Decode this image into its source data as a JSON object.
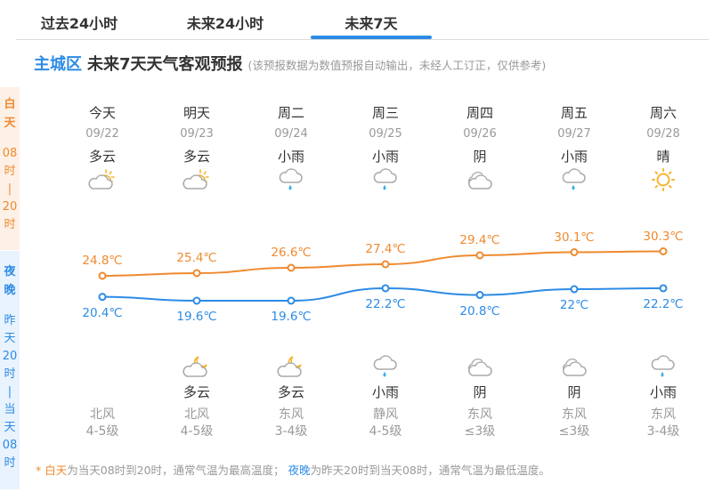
{
  "tabs": [
    {
      "label": "过去24小时",
      "active": false
    },
    {
      "label": "未来24小时",
      "active": false
    },
    {
      "label": "未来7天",
      "active": true
    }
  ],
  "header": {
    "region": "主城区",
    "title": "未来7天天气客观预报",
    "note": "(该预报数据为数值预报自动输出，未经人工订正，仅供参考)"
  },
  "side": {
    "day": {
      "label": "白天",
      "range": [
        "08",
        "时",
        "|",
        "20",
        "时"
      ]
    },
    "night": {
      "label": "夜晚",
      "range": [
        "昨",
        "天",
        "20",
        "时",
        "|",
        "当",
        "天",
        "08",
        "时"
      ]
    }
  },
  "days": [
    {
      "name": "今天",
      "date": "09/22",
      "day_weather": "多云",
      "day_icon": "partly-cloudy-day-icon",
      "night_weather": "",
      "night_icon": "",
      "wind_dir": "北风",
      "wind_level": "4-5级",
      "high": "24.8℃",
      "low": "20.4℃"
    },
    {
      "name": "明天",
      "date": "09/23",
      "day_weather": "多云",
      "day_icon": "partly-cloudy-day-icon",
      "night_weather": "多云",
      "night_icon": "partly-cloudy-night-icon",
      "wind_dir": "北风",
      "wind_level": "4-5级",
      "high": "25.4℃",
      "low": "19.6℃"
    },
    {
      "name": "周二",
      "date": "09/24",
      "day_weather": "小雨",
      "day_icon": "light-rain-icon",
      "night_weather": "多云",
      "night_icon": "partly-cloudy-night-icon",
      "wind_dir": "东风",
      "wind_level": "3-4级",
      "high": "26.6℃",
      "low": "19.6℃"
    },
    {
      "name": "周三",
      "date": "09/25",
      "day_weather": "小雨",
      "day_icon": "light-rain-icon",
      "night_weather": "小雨",
      "night_icon": "light-rain-icon",
      "wind_dir": "静风",
      "wind_level": "4-5级",
      "high": "27.4℃",
      "low": "22.2℃"
    },
    {
      "name": "周四",
      "date": "09/26",
      "day_weather": "阴",
      "day_icon": "overcast-icon",
      "night_weather": "阴",
      "night_icon": "overcast-icon",
      "wind_dir": "东风",
      "wind_level": "≤3级",
      "high": "29.4℃",
      "low": "20.8℃"
    },
    {
      "name": "周五",
      "date": "09/27",
      "day_weather": "小雨",
      "day_icon": "light-rain-icon",
      "night_weather": "阴",
      "night_icon": "overcast-icon",
      "wind_dir": "东风",
      "wind_level": "≤3级",
      "high": "30.1℃",
      "low": "22℃"
    },
    {
      "name": "周六",
      "date": "09/28",
      "day_weather": "晴",
      "day_icon": "sunny-icon",
      "night_weather": "小雨",
      "night_icon": "light-rain-icon",
      "wind_dir": "东风",
      "wind_level": "3-4级",
      "high": "30.3℃",
      "low": "22.2℃"
    }
  ],
  "chart_data": {
    "type": "line",
    "categories": [
      "09/22",
      "09/23",
      "09/24",
      "09/25",
      "09/26",
      "09/27",
      "09/28"
    ],
    "series": [
      {
        "name": "白天最高温度",
        "color": "#ef8a2f",
        "values": [
          24.8,
          25.4,
          26.6,
          27.4,
          29.4,
          30.1,
          30.3
        ]
      },
      {
        "name": "夜晚最低温度",
        "color": "#2d8be6",
        "values": [
          20.4,
          19.6,
          19.6,
          22.2,
          20.8,
          22,
          22.2
        ]
      }
    ],
    "unit": "℃",
    "grid": false
  },
  "footer": {
    "star": "* ",
    "day_word": "白天",
    "day_text": "为当天08时到20时，通常气温为最高温度；",
    "night_word": "夜晚",
    "night_text": "为昨天20时到当天08时，通常气温为最低温度。"
  },
  "colors": {
    "accent": "#2d8be6",
    "day": "#ef8a2f",
    "night": "#2d8be6"
  }
}
